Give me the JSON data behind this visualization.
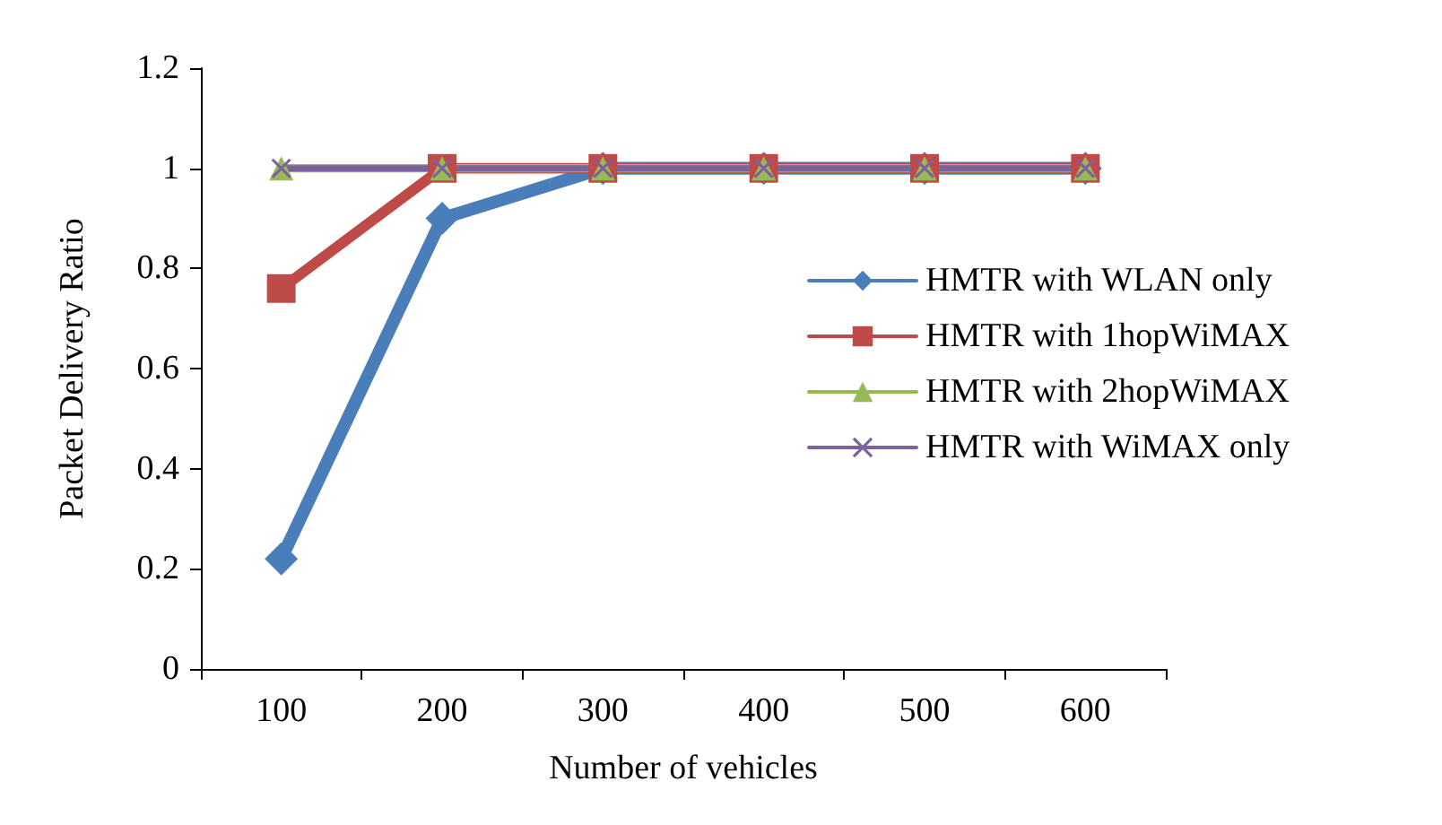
{
  "chart_data": {
    "type": "line",
    "xlabel": "Number of vehicles",
    "ylabel": "Packet Delivery Ratio",
    "categories": [
      "100",
      "200",
      "300",
      "400",
      "500",
      "600"
    ],
    "series": [
      {
        "name": "HMTR with WLAN only",
        "color": "#4a7ebb",
        "marker": "diamond",
        "values": [
          0.22,
          0.9,
          1,
          1,
          1,
          1
        ]
      },
      {
        "name": "HMTR with 1hopWiMAX",
        "color": "#be4b48",
        "marker": "square",
        "values": [
          0.76,
          1,
          1,
          1,
          1,
          1
        ]
      },
      {
        "name": "HMTR with 2hopWiMAX",
        "color": "#98b954",
        "marker": "triangle",
        "values": [
          1,
          1,
          1,
          1,
          1,
          1
        ]
      },
      {
        "name": "HMTR with WiMAX only",
        "color": "#7d60a0",
        "marker": "cross",
        "values": [
          1,
          1,
          1,
          1,
          1,
          1
        ]
      }
    ],
    "ylim": [
      0,
      1.2
    ],
    "yticks": [
      0,
      0.2,
      0.4,
      0.6,
      0.8,
      1,
      1.2
    ],
    "grid": false,
    "legend": "right",
    "line_style": "solid"
  }
}
